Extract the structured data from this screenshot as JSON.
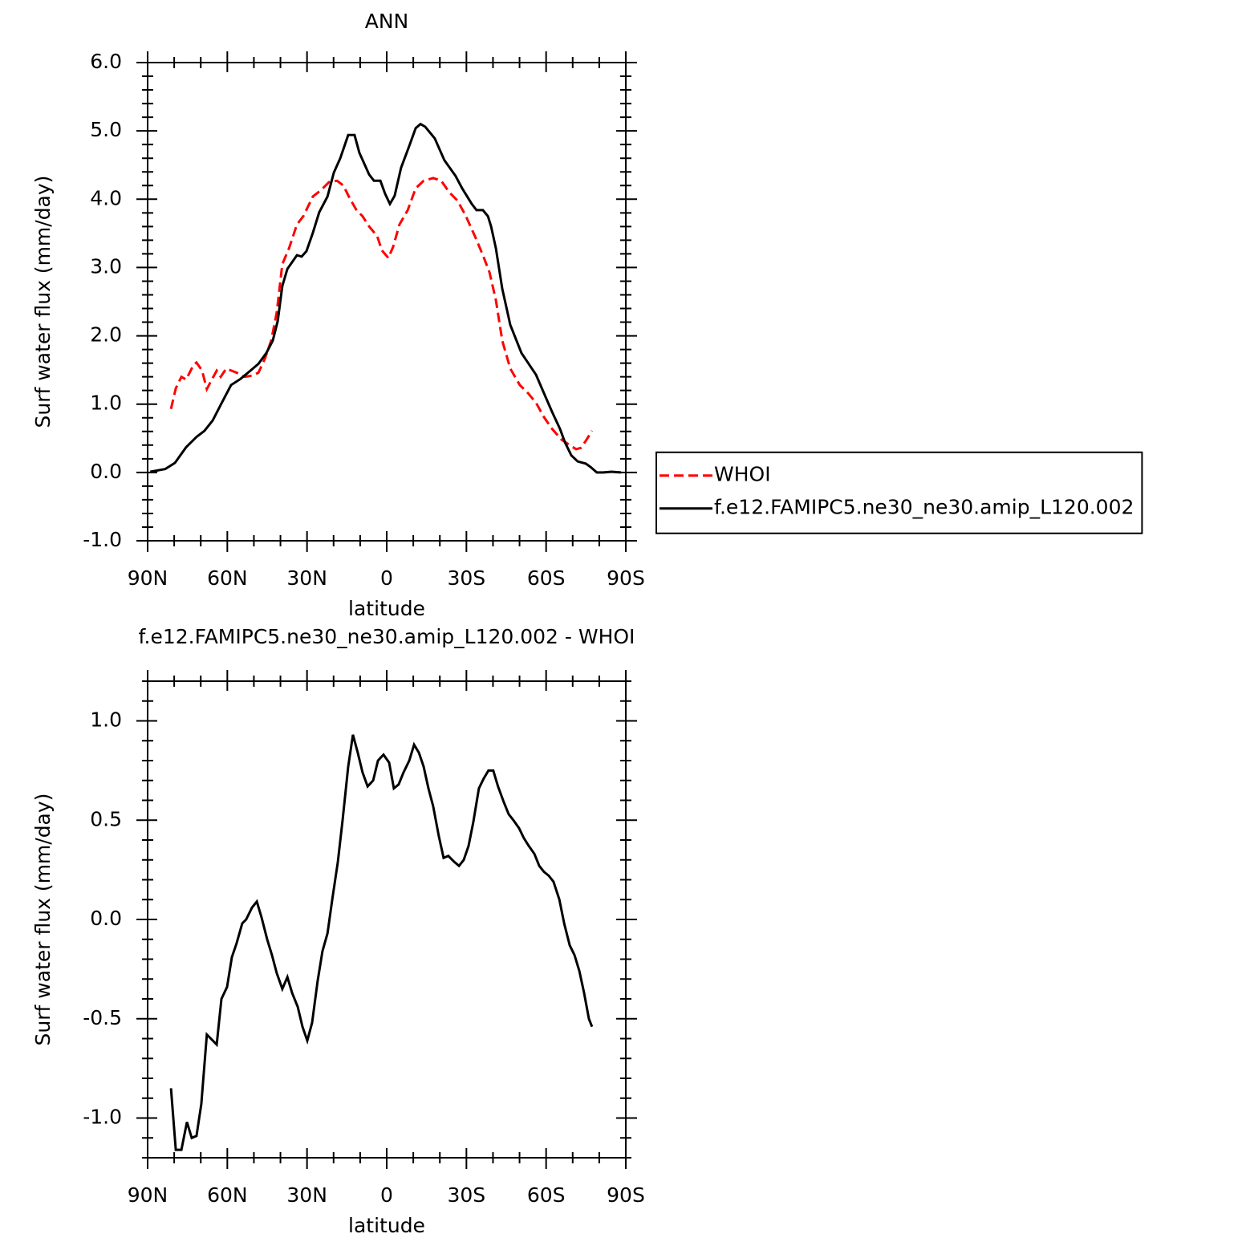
{
  "chart_data": [
    {
      "type": "line",
      "title": "ANN",
      "xlabel": "latitude",
      "ylabel": "Surf water flux (mm/day)",
      "xlim": [
        90,
        -90
      ],
      "xticks": [
        {
          "value": 90,
          "label": "90N"
        },
        {
          "value": 60,
          "label": "60N"
        },
        {
          "value": 30,
          "label": "30N"
        },
        0,
        {
          "value": -30,
          "label": "30S"
        },
        {
          "value": -60,
          "label": "60S"
        },
        {
          "value": -90,
          "label": "90S"
        }
      ],
      "ylim": [
        -1,
        6
      ],
      "yticks": [
        {
          "value": -1,
          "label": "-1.0"
        },
        {
          "value": 0,
          "label": "0.0"
        },
        {
          "value": 1,
          "label": "1.0"
        },
        {
          "value": 2,
          "label": "2.0"
        },
        {
          "value": 3,
          "label": "3.0"
        },
        {
          "value": 4,
          "label": "4.0"
        },
        {
          "value": 5,
          "label": "5.0"
        },
        {
          "value": 6,
          "label": "6.0"
        }
      ],
      "legend": "right",
      "series": [
        {
          "name": "WHOI",
          "color": "#ff0000",
          "dash": true,
          "x": [
            81.2,
            79.4,
            77.3,
            75.5,
            72.8,
            71.6,
            69.5,
            67.7,
            66.1,
            64,
            62.5,
            60.4,
            56.5,
            53.5,
            50.4,
            48.3,
            45.9,
            43.5,
            41.4,
            39.3,
            36.8,
            33.8,
            31.4,
            27.8,
            24.8,
            21.7,
            18.7,
            16.3,
            13.9,
            11.5,
            9.1,
            6.6,
            3.6,
            1.8,
            -0.6,
            -2.4,
            -4.8,
            -7.9,
            -10.9,
            -13.9,
            -17.5,
            -20.5,
            -23.6,
            -26.6,
            -29.6,
            -33.2,
            -36.2,
            -38.7,
            -41.1,
            -43.5,
            -46.5,
            -50.1,
            -53.2,
            -56.2,
            -59.2,
            -62.2,
            -65.8,
            -68.9,
            -71.3,
            -73.1,
            -74.9,
            -77.3
          ],
          "values": [
            0.93,
            1.23,
            1.4,
            1.36,
            1.57,
            1.61,
            1.49,
            1.22,
            1.34,
            1.49,
            1.4,
            1.52,
            1.46,
            1.4,
            1.42,
            1.46,
            1.66,
            1.93,
            2.34,
            3.05,
            3.28,
            3.63,
            3.75,
            4.04,
            4.13,
            4.25,
            4.27,
            4.2,
            4.01,
            3.85,
            3.75,
            3.6,
            3.46,
            3.25,
            3.14,
            3.3,
            3.63,
            3.84,
            4.16,
            4.27,
            4.31,
            4.27,
            4.1,
            3.98,
            3.77,
            3.46,
            3.18,
            2.93,
            2.52,
            1.93,
            1.52,
            1.28,
            1.16,
            1.02,
            0.81,
            0.64,
            0.48,
            0.4,
            0.34,
            0.36,
            0.46,
            0.61
          ]
        },
        {
          "name": "f.e12.FAMIPC5.ne30_ne30.amip_L120.002",
          "color": "#000000",
          "dash": false,
          "x": [
            89,
            83.4,
            79.7,
            75.5,
            71.6,
            68.6,
            65.5,
            62.5,
            58.6,
            55,
            51.3,
            48.3,
            45.3,
            42.9,
            41,
            39.3,
            37.4,
            33.8,
            32,
            30.2,
            27.8,
            25.4,
            22.3,
            19.9,
            17.5,
            14.5,
            12.1,
            10.3,
            6.6,
            4.8,
            2.4,
            0.6,
            -1.2,
            -3,
            -5.4,
            -8.5,
            -10.9,
            -12.7,
            -14.5,
            -18.1,
            -21.7,
            -25.9,
            -28.4,
            -32,
            -33.8,
            -36.2,
            -38.1,
            -39.3,
            -41.1,
            -43.5,
            -46.5,
            -50.7,
            -53.8,
            -56.2,
            -59.2,
            -62.2,
            -65.2,
            -67.1,
            -69.5,
            -71.9,
            -74.9,
            -76.7,
            -79.1,
            -81.5,
            -84.6,
            -88.2
          ],
          "values": [
            0.01,
            0.05,
            0.14,
            0.37,
            0.52,
            0.61,
            0.76,
            0.99,
            1.28,
            1.37,
            1.49,
            1.59,
            1.75,
            1.93,
            2.22,
            2.73,
            2.98,
            3.18,
            3.16,
            3.24,
            3.51,
            3.81,
            4.04,
            4.39,
            4.6,
            4.94,
            4.94,
            4.68,
            4.36,
            4.27,
            4.27,
            4.08,
            3.93,
            4.05,
            4.46,
            4.78,
            5.04,
            5.1,
            5.06,
            4.89,
            4.57,
            4.34,
            4.16,
            3.93,
            3.84,
            3.84,
            3.75,
            3.6,
            3.28,
            2.69,
            2.16,
            1.75,
            1.57,
            1.43,
            1.16,
            0.89,
            0.64,
            0.44,
            0.25,
            0.16,
            0.13,
            0.08,
            0,
            0,
            0.01,
            0
          ]
        }
      ]
    },
    {
      "type": "line",
      "title": "f.e12.FAMIPC5.ne30_ne30.amip_L120.002 - WHOI",
      "xlabel": "latitude",
      "ylabel": "Surf water flux (mm/day)",
      "xlim": [
        90,
        -90
      ],
      "xticks": [
        {
          "value": 90,
          "label": "90N"
        },
        {
          "value": 60,
          "label": "60N"
        },
        {
          "value": 30,
          "label": "30N"
        },
        0,
        {
          "value": -30,
          "label": "30S"
        },
        {
          "value": -60,
          "label": "60S"
        },
        {
          "value": -90,
          "label": "90S"
        }
      ],
      "ylim": [
        -1.2,
        1.2
      ],
      "yticks": [
        {
          "value": -1,
          "label": "-1.0"
        },
        -0.5,
        {
          "value": 0,
          "label": "0.0"
        },
        0.5,
        {
          "value": 1,
          "label": "1.0"
        }
      ],
      "color": "#000000",
      "x": [
        81.2,
        79.4,
        77.3,
        75.2,
        73.4,
        71.6,
        69.8,
        67.7,
        64,
        62.2,
        60.1,
        58.3,
        56.5,
        54.4,
        52.9,
        50.7,
        48.9,
        47.1,
        45,
        43.2,
        41.4,
        39.3,
        37.4,
        35.6,
        33.5,
        31.7,
        29.9,
        28.1,
        26,
        24.2,
        22.3,
        20.5,
        18.4,
        16.6,
        14.5,
        12.7,
        10.9,
        9.1,
        7.2,
        5.1,
        3.3,
        1.2,
        -0.9,
        -2.7,
        -4.5,
        -6.3,
        -8.5,
        -10.3,
        -12.1,
        -13.9,
        -15.7,
        -17.5,
        -19.6,
        -21.4,
        -23.2,
        -25.4,
        -27.2,
        -29,
        -30.8,
        -32.6,
        -34.7,
        -36.5,
        -38.3,
        -40.1,
        -41.9,
        -44.1,
        -45.9,
        -47.7,
        -49.8,
        -51.6,
        -53.5,
        -55.6,
        -57.4,
        -59.2,
        -61,
        -62.8,
        -65,
        -66.8,
        -68.9,
        -70.7,
        -72.5,
        -74.3,
        -76.1,
        -77.3
      ],
      "values": [
        -0.85,
        -1.16,
        -1.16,
        -1.02,
        -1.1,
        -1.09,
        -0.93,
        -0.58,
        -0.63,
        -0.4,
        -0.34,
        -0.19,
        -0.12,
        -0.02,
        0,
        0.06,
        0.09,
        0.01,
        -0.1,
        -0.18,
        -0.27,
        -0.35,
        -0.29,
        -0.37,
        -0.44,
        -0.54,
        -0.61,
        -0.52,
        -0.31,
        -0.16,
        -0.07,
        0.1,
        0.29,
        0.5,
        0.77,
        0.93,
        0.84,
        0.74,
        0.67,
        0.7,
        0.8,
        0.83,
        0.79,
        0.66,
        0.68,
        0.74,
        0.8,
        0.88,
        0.84,
        0.77,
        0.66,
        0.57,
        0.42,
        0.31,
        0.32,
        0.29,
        0.27,
        0.3,
        0.37,
        0.49,
        0.66,
        0.71,
        0.75,
        0.75,
        0.67,
        0.59,
        0.53,
        0.5,
        0.46,
        0.41,
        0.37,
        0.33,
        0.27,
        0.24,
        0.22,
        0.19,
        0.1,
        -0.02,
        -0.13,
        -0.18,
        -0.26,
        -0.37,
        -0.5,
        -0.54
      ]
    }
  ]
}
